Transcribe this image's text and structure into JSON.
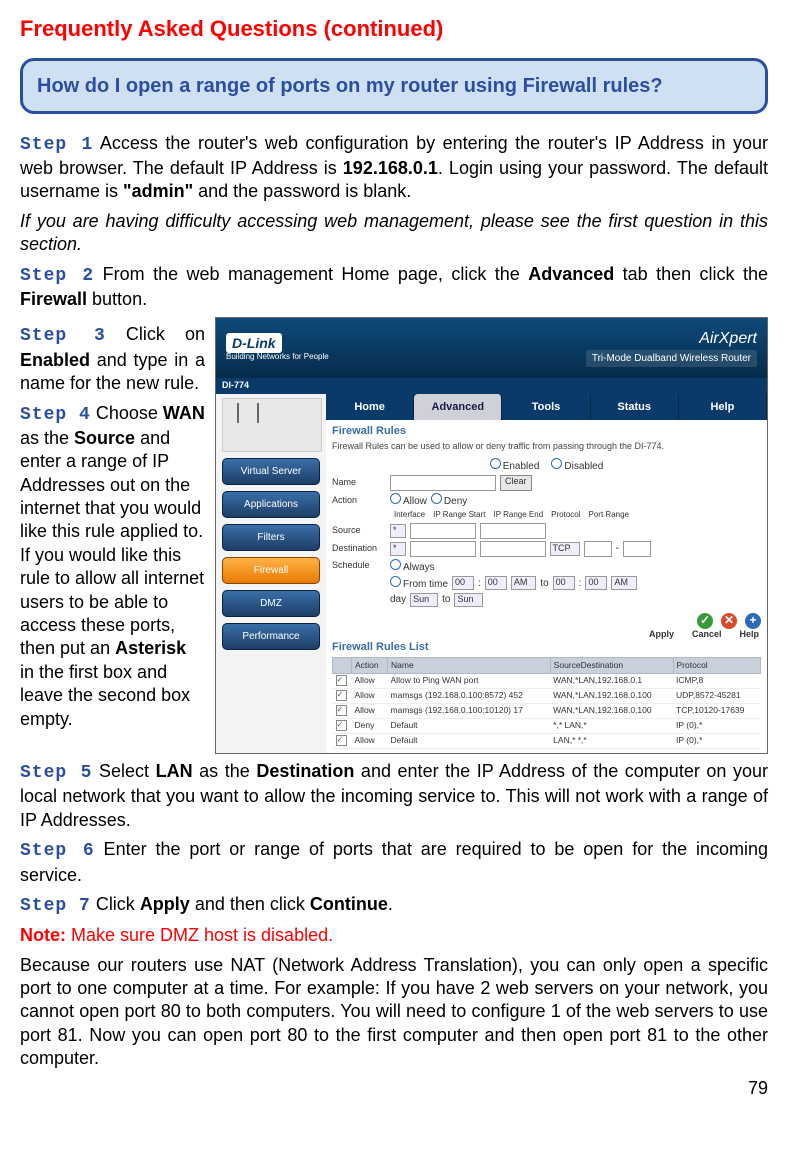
{
  "page": {
    "title": "Frequently Asked Questions (continued)",
    "number": "79"
  },
  "question": "How do I open a range of ports on my router using Firewall rules?",
  "steps": {
    "s1_label": "Step 1",
    "s1_a": " Access the router's web configuration by entering the router's IP Address in your web browser. The default IP Address is ",
    "s1_ip": "192.168.0.1",
    "s1_b": ". Login using your password. The default username is ",
    "s1_admin": "\"admin\"",
    "s1_c": " and the password is blank.",
    "s1_italic": "If you are having difficulty accessing web management, please see the first question in this section.",
    "s2_label": "Step 2",
    "s2_a": " From the web management Home page, click the ",
    "s2_adv": "Advanced",
    "s2_b": " tab then click the ",
    "s2_fw": "Firewall",
    "s2_c": " button.",
    "s3_label": "Step 3",
    "s3_a": " Click on ",
    "s3_en": "Enabled",
    "s3_b": " and type in a name for the new rule.",
    "s4_label": "Step 4",
    "s4_a": " Choose ",
    "s4_wan": "WAN",
    "s4_b": " as the ",
    "s4_src": "Source",
    "s4_c": " and enter a range of IP Addresses out on the internet that you would like this rule applied to. If you would like this rule to allow all internet users to be able to access these ports, then put an ",
    "s4_ast": "Asterisk",
    "s4_d": " in the first box and leave the second box empty.",
    "s5_label": "Step 5",
    "s5_a": " Select ",
    "s5_lan": "LAN",
    "s5_b": " as the ",
    "s5_dst": "Destination",
    "s5_c": " and enter the IP Address of the computer on your local network that you want to allow the incoming service to. This will not work with a range of IP Addresses.",
    "s6_label": "Step 6",
    "s6_a": " Enter the port or range of ports that are required to be open for the incoming service.",
    "s7_label": "Step 7",
    "s7_a": " Click ",
    "s7_apply": "Apply",
    "s7_b": " and then click ",
    "s7_cont": "Continue",
    "s7_c": "."
  },
  "note": {
    "label": "Note:",
    "red": " Make sure DMZ host is disabled.",
    "body": "Because our routers use NAT (Network Address Translation), you can only open a specific port to one computer at a time. For example: If you have 2 web servers on your network, you cannot open port 80 to both computers. You will need to configure 1 of the web servers to use port 81. Now you can open port 80 to the first computer and then open port 81 to the other computer."
  },
  "ui": {
    "brand": "D-Link",
    "brand_tag": "Building Networks for People",
    "logo": "AirXpert",
    "subtitle": "Tri-Mode Dualband Wireless Router",
    "model": "DI-774",
    "tabs": [
      "Home",
      "Advanced",
      "Tools",
      "Status",
      "Help"
    ],
    "side": [
      "Virtual Server",
      "Applications",
      "Filters",
      "Firewall",
      "DMZ",
      "Performance"
    ],
    "panel_title": "Firewall Rules",
    "panel_desc": "Firewall Rules can be used to allow or deny traffic from passing through the DI-774.",
    "labels": {
      "enabled": "Enabled",
      "disabled": "Disabled",
      "name": "Name",
      "clear": "Clear",
      "action": "Action",
      "allow": "Allow",
      "deny": "Deny",
      "interface": "Interface",
      "iprs": "IP Range Start",
      "ipre": "IP Range End",
      "protocol": "Protocol",
      "portrange": "Port Range",
      "source": "Source",
      "destination": "Destination",
      "tcp": "TCP",
      "schedule": "Schedule",
      "always": "Always",
      "from": "From time",
      "to": "to",
      "day": "day",
      "sun": "Sun",
      "am": "AM",
      "zero": "00"
    },
    "btns": {
      "apply": "Apply",
      "cancel": "Cancel",
      "help": "Help",
      "check": "✓",
      "x": "✕",
      "plus": "+"
    },
    "rules_title": "Firewall Rules List",
    "th": {
      "action": "Action",
      "name": "Name",
      "sd": "SourceDestination",
      "proto": "Protocol"
    },
    "rows": [
      {
        "chk": "on",
        "act": "Allow",
        "name": "Allow to Ping WAN port",
        "sd": "WAN,*LAN,192.168.0.1",
        "proto": "ICMP,8"
      },
      {
        "chk": "on",
        "act": "Allow",
        "name": "mamsgs (192.168.0.100:8572) 452",
        "sd": "WAN,*LAN,192.168.0.100",
        "proto": "UDP,8572-45281"
      },
      {
        "chk": "on",
        "act": "Allow",
        "name": "mamsgs (192.168.0.100:10120) 17",
        "sd": "WAN,*LAN,192.168.0.100",
        "proto": "TCP,10120-17639"
      },
      {
        "chk": "on",
        "act": "Deny",
        "name": "Default",
        "sd": "*,*     LAN,*",
        "proto": "IP (0),*"
      },
      {
        "chk": "on",
        "act": "Allow",
        "name": "Default",
        "sd": "LAN,* *,*",
        "proto": "IP (0),*"
      }
    ]
  }
}
